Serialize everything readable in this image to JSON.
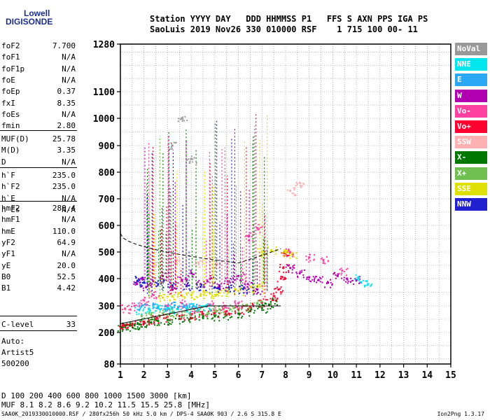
{
  "logo": {
    "line1": "Lowell",
    "line2": "DIGISONDE"
  },
  "header": {
    "line1": "Station YYYY DAY   DDD HHMMSS P1   FFS S AXN PPS IGA PS",
    "line2": "SaoLuis 2019 Nov26 330 010000 RSF    1 715 100 00- 11"
  },
  "params_group1": [
    {
      "name": "foF2",
      "value": "7.700"
    },
    {
      "name": "foF1",
      "value": "N/A"
    },
    {
      "name": "foF1p",
      "value": "N/A"
    },
    {
      "name": "foE",
      "value": "N/A"
    },
    {
      "name": "foEp",
      "value": "0.37"
    },
    {
      "name": "fxI",
      "value": "8.35"
    },
    {
      "name": "foEs",
      "value": "N/A"
    },
    {
      "name": "fmin",
      "value": "2.80"
    }
  ],
  "params_group2": [
    {
      "name": "MUF(D)",
      "value": "25.78"
    },
    {
      "name": "M(D)",
      "value": "3.35"
    },
    {
      "name": "D",
      "value": "N/A"
    }
  ],
  "params_group3": [
    {
      "name": "h`F",
      "value": "235.0"
    },
    {
      "name": "h`F2",
      "value": "235.0"
    },
    {
      "name": "h`E",
      "value": "N/A"
    },
    {
      "name": "h`Es",
      "value": "N/A"
    }
  ],
  "params_group4": [
    {
      "name": "hmF2",
      "value": "288.4"
    },
    {
      "name": "hmF1",
      "value": "N/A"
    },
    {
      "name": "hmE",
      "value": "110.0"
    },
    {
      "name": "yF2",
      "value": "64.9"
    },
    {
      "name": "yF1",
      "value": "N/A"
    },
    {
      "name": "yE",
      "value": "20.0"
    },
    {
      "name": "B0",
      "value": "52.5"
    },
    {
      "name": "B1",
      "value": "4.42"
    }
  ],
  "params_group5": [
    {
      "name": "C-level",
      "value": "33"
    }
  ],
  "auto_text": {
    "line1": "Auto:",
    "line2": "Artist5",
    "line3": "500200"
  },
  "legend": [
    {
      "label": "NoVal",
      "bg": "#999999",
      "fg": "#ffffff"
    },
    {
      "label": "NNE",
      "bg": "#00e5ee",
      "fg": "#ffffff"
    },
    {
      "label": "E",
      "bg": "#2aa7f5",
      "fg": "#ffffff"
    },
    {
      "label": "W",
      "bg": "#b000b0",
      "fg": "#ffffff"
    },
    {
      "label": "Vo-",
      "bg": "#ff40a0",
      "fg": "#ffffff"
    },
    {
      "label": "Vo+",
      "bg": "#ff0030",
      "fg": "#ffffff"
    },
    {
      "label": "SSW",
      "bg": "#ffb0b0",
      "fg": "#ffffff"
    },
    {
      "label": "X-",
      "bg": "#007800",
      "fg": "#ffffff"
    },
    {
      "label": "X+",
      "bg": "#70c050",
      "fg": "#ffffff"
    },
    {
      "label": "SSE",
      "bg": "#e0e000",
      "fg": "#ffffff"
    },
    {
      "label": "NNW",
      "bg": "#2020d0",
      "fg": "#ffffff"
    }
  ],
  "bottom_table": {
    "row1": "D      100  200  400  600  800 1000 1500 3000 [km]",
    "row2": "MUF    8.1  8.2  8.6  9.2 10.2 11.5 15.5 25.8 [MHz]"
  },
  "footer": {
    "left": "SAA0K_2019330010000.RSF / 280fx256h 50 kHz 5.0 km / DPS-4 SAA0K 903 / 2.6 S 315.8 E",
    "right": "Ion2Png 1.3.17"
  },
  "chart_data": {
    "type": "scatter",
    "title": "",
    "xlabel": "",
    "ylabel": "",
    "x_ticks": [
      1,
      2,
      3,
      4,
      5,
      6,
      7,
      8,
      9,
      10,
      11,
      12,
      13,
      14,
      15
    ],
    "y_ticks": [
      80,
      200,
      300,
      400,
      500,
      600,
      700,
      800,
      900,
      1000,
      1100,
      1280
    ],
    "xlim": [
      1,
      15
    ],
    "ylim": [
      80,
      1280
    ],
    "grid": true,
    "series": [
      {
        "name": "X-",
        "color": "#007800",
        "x": [
          1.05,
          1.2,
          1.4,
          1.6,
          1.8,
          2.0,
          2.3,
          2.6,
          3.0,
          3.5,
          4.0,
          4.5,
          5.0,
          5.5,
          6.0,
          6.5,
          7.0,
          7.3,
          7.6
        ],
        "y": [
          220,
          223,
          226,
          228,
          231,
          234,
          238,
          243,
          247,
          251,
          254,
          257,
          261,
          265,
          271,
          280,
          292,
          305,
          320
        ]
      },
      {
        "name": "Vo+",
        "color": "#ff0030",
        "x": [
          1.1,
          1.5,
          2.0,
          2.5,
          3.0,
          3.5,
          4.0,
          4.5,
          5.0,
          5.5,
          6.0,
          6.5,
          7.0,
          7.5,
          7.7,
          7.8,
          7.9,
          8.0
        ],
        "y": [
          225,
          231,
          241,
          250,
          258,
          262,
          266,
          270,
          274,
          280,
          287,
          296,
          312,
          336,
          360,
          400,
          440,
          490
        ]
      },
      {
        "name": "X+",
        "color": "#70c050",
        "x": [
          1.9,
          2.3,
          2.8,
          3.2,
          3.8,
          4.3,
          4.8,
          5.2,
          5.8,
          6.3,
          6.8
        ],
        "y": [
          262,
          268,
          272,
          275,
          280,
          283,
          285,
          287,
          292,
          300,
          310
        ]
      },
      {
        "name": "SSE",
        "color": "#e0e000",
        "x": [
          2.8,
          3.2,
          3.6,
          4.0,
          4.4,
          4.8,
          5.2,
          5.6,
          6.0,
          6.4,
          6.8,
          7.0,
          7.4,
          8.0,
          8.3
        ],
        "y": [
          330,
          335,
          338,
          340,
          343,
          345,
          348,
          350,
          355,
          360,
          370,
          500,
          505,
          500,
          495
        ]
      },
      {
        "name": "W",
        "color": "#b000b0",
        "x": [
          1.7,
          1.9,
          2.1,
          2.4,
          2.8,
          3.2,
          3.6,
          4.0,
          4.4,
          4.8,
          5.2,
          5.6,
          6.0,
          6.4,
          6.8,
          8.2,
          8.6,
          9.0,
          9.4,
          9.8,
          10.2,
          10.6,
          11.0
        ],
        "y": [
          380,
          400,
          370,
          390,
          410,
          360,
          395,
          420,
          380,
          400,
          370,
          390,
          410,
          380,
          360,
          440,
          420,
          405,
          395,
          385,
          410,
          400,
          395
        ]
      },
      {
        "name": "NNW",
        "color": "#2020d0",
        "x": [
          1.8,
          2.0,
          2.6,
          3.2,
          3.8,
          4.4,
          5.0,
          5.6,
          6.2
        ],
        "y": [
          395,
          385,
          380,
          375,
          372,
          370,
          368,
          365,
          362
        ]
      },
      {
        "name": "Vo-",
        "color": "#ff40a0",
        "x": [
          1.2,
          1.6,
          2.0,
          2.4,
          3.0,
          3.6,
          4.2,
          4.8,
          5.4,
          6.0,
          6.4,
          6.8,
          8.2,
          9.0,
          9.6,
          10.4
        ],
        "y": [
          290,
          300,
          320,
          340,
          300,
          310,
          295,
          305,
          300,
          310,
          560,
          590,
          500,
          480,
          470,
          430
        ]
      },
      {
        "name": "NNE",
        "color": "#00e5ee",
        "x": [
          1.8,
          2.2,
          2.6,
          3.0,
          3.4,
          3.8,
          4.2,
          4.6,
          11.1,
          11.5
        ],
        "y": [
          285,
          290,
          295,
          292,
          288,
          290,
          295,
          298,
          400,
          380
        ]
      },
      {
        "name": "E",
        "color": "#2aa7f5",
        "x": [
          1.9,
          2.4,
          2.9,
          3.3,
          3.7,
          4.1
        ],
        "y": [
          300,
          305,
          298,
          302,
          296,
          300
        ]
      },
      {
        "name": "SSW",
        "color": "#ffb0b0",
        "x": [
          2.5,
          3.4,
          4.3,
          5.1,
          8.2,
          8.6
        ],
        "y": [
          450,
          470,
          460,
          455,
          730,
          760
        ]
      },
      {
        "name": "NoVal",
        "color": "#999999",
        "x": [
          3.2,
          3.6,
          4.0
        ],
        "y": [
          900,
          1000,
          850
        ]
      }
    ]
  }
}
